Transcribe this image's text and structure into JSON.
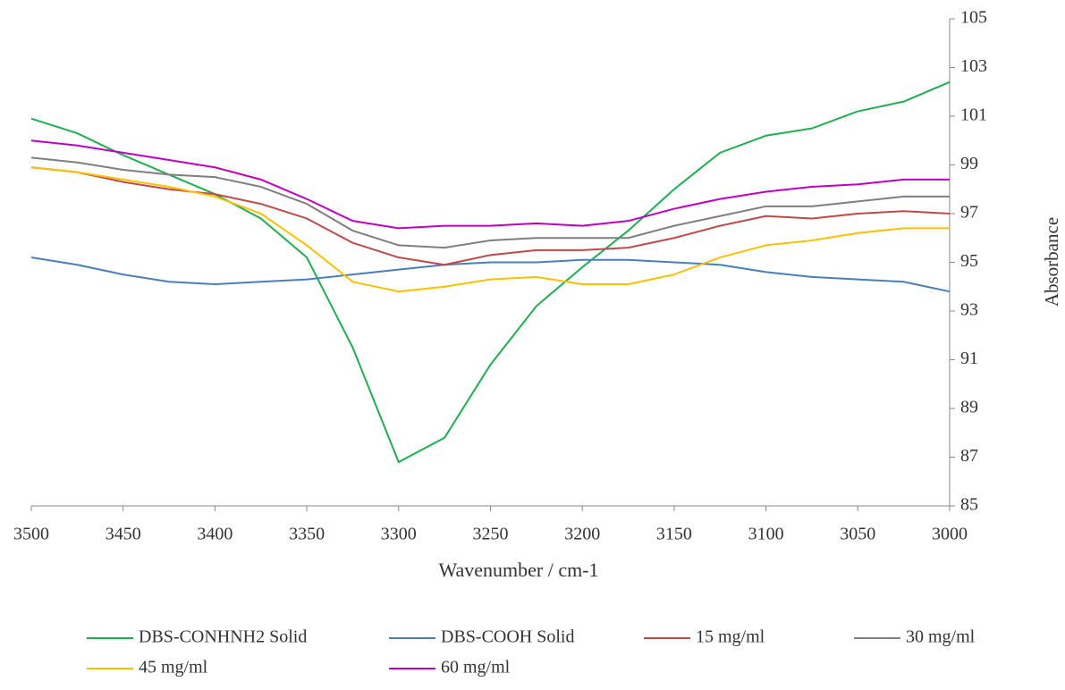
{
  "chart_data": {
    "type": "line",
    "x_label": "Wavenumber / cm-1",
    "y_label": "Absorbance",
    "x": [
      3500,
      3475,
      3450,
      3425,
      3400,
      3375,
      3350,
      3325,
      3300,
      3275,
      3250,
      3225,
      3200,
      3175,
      3150,
      3125,
      3100,
      3075,
      3050,
      3025,
      3000
    ],
    "xlim": [
      3500,
      3000
    ],
    "xticks": [
      3500,
      3450,
      3400,
      3350,
      3300,
      3250,
      3200,
      3150,
      3100,
      3050,
      3000
    ],
    "ylim": [
      85,
      105
    ],
    "yticks": [
      85,
      87,
      89,
      91,
      93,
      95,
      97,
      99,
      101,
      103,
      105
    ],
    "y_axis_side": "right",
    "grid": false,
    "legend": "bottom",
    "series": [
      {
        "name": "DBS-CONHNH2 Solid",
        "color": "#1fae4f",
        "values": [
          100.9,
          100.3,
          99.4,
          98.6,
          97.8,
          96.8,
          95.2,
          91.5,
          86.8,
          87.8,
          90.8,
          93.2,
          94.8,
          96.3,
          98.0,
          99.5,
          100.2,
          100.5,
          101.2,
          101.6,
          102.4
        ]
      },
      {
        "name": "DBS-COOH Solid",
        "color": "#4a7ebb",
        "values": [
          95.2,
          94.9,
          94.5,
          94.2,
          94.1,
          94.2,
          94.3,
          94.5,
          94.7,
          94.9,
          95.0,
          95.0,
          95.1,
          95.1,
          95.0,
          94.9,
          94.6,
          94.4,
          94.3,
          94.2,
          93.8
        ]
      },
      {
        "name": "15 mg/ml",
        "color": "#be4b48",
        "values": [
          98.9,
          98.7,
          98.3,
          98.0,
          97.8,
          97.4,
          96.8,
          95.8,
          95.2,
          94.9,
          95.3,
          95.5,
          95.5,
          95.6,
          96.0,
          96.5,
          96.9,
          96.8,
          97.0,
          97.1,
          97.0
        ]
      },
      {
        "name": "30 mg/ml",
        "color": "#7f7f7f",
        "values": [
          99.3,
          99.1,
          98.8,
          98.6,
          98.5,
          98.1,
          97.4,
          96.3,
          95.7,
          95.6,
          95.9,
          96.0,
          96.0,
          96.0,
          96.5,
          96.9,
          97.3,
          97.3,
          97.5,
          97.7,
          97.7
        ]
      },
      {
        "name": "45 mg/ml",
        "color": "#f9c000",
        "values": [
          98.9,
          98.7,
          98.4,
          98.1,
          97.7,
          97.0,
          95.7,
          94.2,
          93.8,
          94.0,
          94.3,
          94.4,
          94.1,
          94.1,
          94.5,
          95.2,
          95.7,
          95.9,
          96.2,
          96.4,
          96.4
        ]
      },
      {
        "name": "60 mg/ml",
        "color": "#c000c0",
        "values": [
          100.0,
          99.8,
          99.5,
          99.2,
          98.9,
          98.4,
          97.6,
          96.7,
          96.4,
          96.5,
          96.5,
          96.6,
          96.5,
          96.7,
          97.2,
          97.6,
          97.9,
          98.1,
          98.2,
          98.4,
          98.4
        ]
      }
    ]
  }
}
